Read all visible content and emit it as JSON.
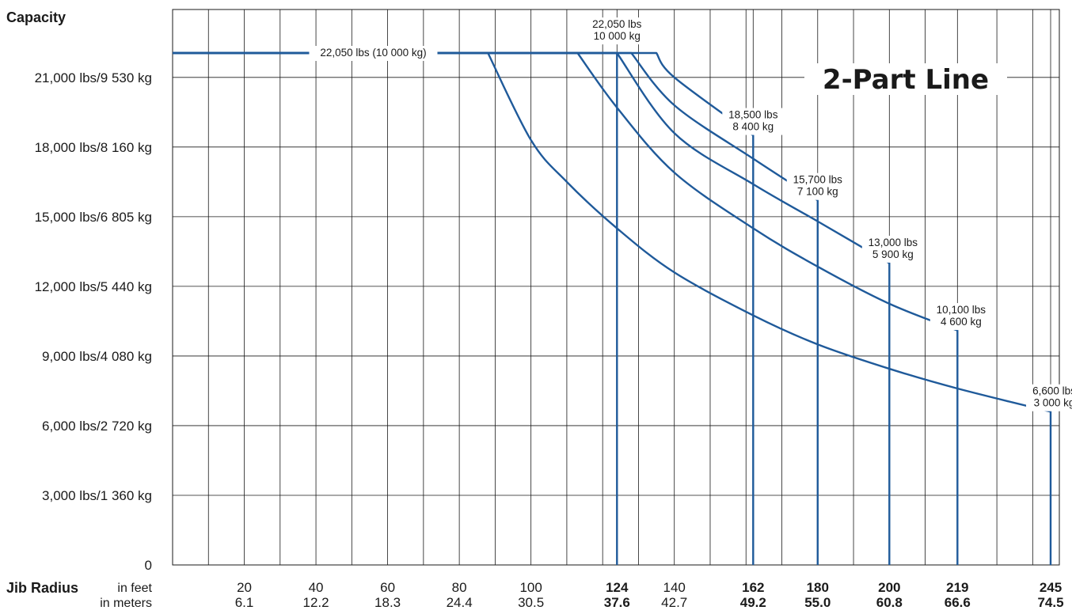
{
  "chart_data": {
    "type": "line",
    "title": "2-Part Line",
    "ylabel": "Capacity",
    "xlabel": "Jib Radius",
    "x_unit_labels": [
      "in feet",
      "in meters"
    ],
    "xlim": [
      0,
      245
    ],
    "ylim": [
      0,
      22050
    ],
    "grid": true,
    "line_color": "#1f5a9a",
    "y_ticks": [
      {
        "value": 0,
        "label": "0"
      },
      {
        "value": 3000,
        "label": "3,000 lbs/1 360 kg"
      },
      {
        "value": 6000,
        "label": "6,000 lbs/2 720 kg"
      },
      {
        "value": 9000,
        "label": "9,000 lbs/4 080 kg"
      },
      {
        "value": 12000,
        "label": "12,000 lbs/5 440 kg"
      },
      {
        "value": 15000,
        "label": "15,000 lbs/6 805 kg"
      },
      {
        "value": 18000,
        "label": "18,000 lbs/8 160 kg"
      },
      {
        "value": 21000,
        "label": "21,000 lbs/9 530 kg"
      }
    ],
    "x_ticks": [
      {
        "value": 20,
        "feet": "20",
        "meters": "6.1",
        "bold": false
      },
      {
        "value": 40,
        "feet": "40",
        "meters": "12.2",
        "bold": false
      },
      {
        "value": 60,
        "feet": "60",
        "meters": "18.3",
        "bold": false
      },
      {
        "value": 80,
        "feet": "80",
        "meters": "24.4",
        "bold": false
      },
      {
        "value": 100,
        "feet": "100",
        "meters": "30.5",
        "bold": false
      },
      {
        "value": 124,
        "feet": "124",
        "meters": "37.6",
        "bold": true
      },
      {
        "value": 140,
        "feet": "140",
        "meters": "42.7",
        "bold": false
      },
      {
        "value": 162,
        "feet": "162",
        "meters": "49.2",
        "bold": true
      },
      {
        "value": 180,
        "feet": "180",
        "meters": "55.0",
        "bold": true
      },
      {
        "value": 200,
        "feet": "200",
        "meters": "60.8",
        "bold": true
      },
      {
        "value": 219,
        "feet": "219",
        "meters": "66.6",
        "bold": true
      },
      {
        "value": 245,
        "feet": "245",
        "meters": "74.5",
        "bold": true
      }
    ],
    "x_grid": [
      0,
      10,
      20,
      30,
      40,
      50,
      60,
      70,
      80,
      90,
      100,
      110,
      120,
      124,
      130,
      140,
      150,
      160,
      162,
      170,
      180,
      190,
      200,
      210,
      219,
      230,
      240,
      245
    ],
    "series": [
      {
        "values": [
          [
            0,
            22050
          ],
          [
            124,
            22050
          ],
          [
            124,
            0
          ]
        ]
      },
      {
        "x": [
          0,
          88,
          100,
          110,
          124,
          140,
          162,
          180,
          200,
          219,
          245
        ],
        "y": [
          22050,
          22050,
          18300,
          16500,
          14500,
          12600,
          10750,
          9500,
          8450,
          7600,
          6600
        ],
        "end_drop": true
      },
      {
        "x": [
          0,
          113,
          124,
          140,
          162,
          180,
          200,
          219
        ],
        "y": [
          22050,
          22050,
          19700,
          16900,
          14500,
          12850,
          11250,
          10100
        ],
        "end_drop": true
      },
      {
        "x": [
          0,
          124,
          140,
          162,
          180,
          200
        ],
        "y": [
          22050,
          22050,
          18600,
          16400,
          14800,
          13000
        ],
        "end_drop": true
      },
      {
        "x": [
          0,
          128,
          140,
          162,
          180
        ],
        "y": [
          22050,
          22050,
          19800,
          17500,
          15700
        ],
        "end_drop": true
      },
      {
        "x": [
          0,
          135,
          140,
          162
        ],
        "y": [
          22050,
          22050,
          21000,
          18500
        ],
        "end_drop": true
      }
    ],
    "annotations": [
      {
        "lines": [
          "22,050 lbs (10 000 kg)"
        ],
        "x": 56,
        "y": 22050
      },
      {
        "lines": [
          "22,050 lbs",
          "10 000 kg"
        ],
        "x": 124,
        "y": 23000
      },
      {
        "lines": [
          "18,500 lbs",
          "8 400 kg"
        ],
        "x": 162,
        "y": 19100
      },
      {
        "lines": [
          "15,700 lbs",
          "7 100 kg"
        ],
        "x": 180,
        "y": 16300
      },
      {
        "lines": [
          "13,000 lbs",
          "5 900 kg"
        ],
        "x": 201,
        "y": 13600
      },
      {
        "lines": [
          "10,100 lbs",
          "4 600 kg"
        ],
        "x": 220,
        "y": 10700
      },
      {
        "lines": [
          "6,600 lbs",
          "3 000 kg"
        ],
        "x": 246,
        "y": 7200
      }
    ]
  }
}
